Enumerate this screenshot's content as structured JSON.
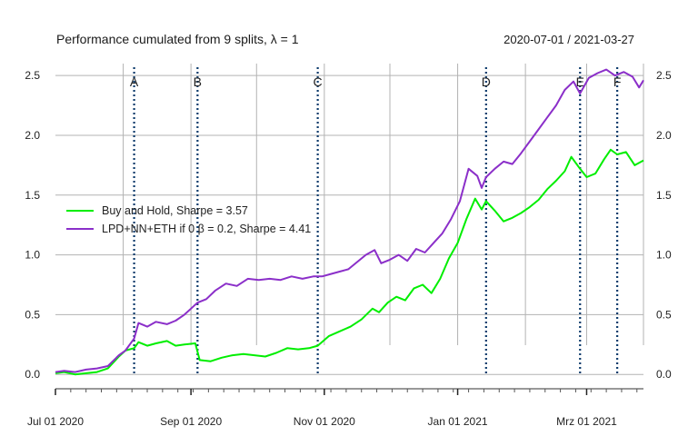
{
  "chart_data": {
    "type": "line",
    "title": "Performance cumulated from 9 splits, λ = 1",
    "date_range": "2020-07-01 / 2021-03-27",
    "x_range": [
      "2020-07-01",
      "2021-03-27"
    ],
    "ylim": [
      -0.12,
      2.6
    ],
    "y_ticks": [
      "0.0",
      "0.5",
      "1.0",
      "1.5",
      "2.0",
      "2.5"
    ],
    "x_tick_labels": [
      {
        "date": "2020-07-01",
        "label": "Jul 01 2020"
      },
      {
        "date": "2020-09-01",
        "label": "Sep 01 2020"
      },
      {
        "date": "2020-11-01",
        "label": "Nov 01 2020"
      },
      {
        "date": "2021-01-01",
        "label": "Jan 01 2021"
      },
      {
        "date": "2021-03-01",
        "label": "Mrz 01 2021"
      }
    ],
    "month_gridlines": [
      "2020-08-01",
      "2020-09-01",
      "2020-10-01",
      "2020-11-01",
      "2020-12-01",
      "2021-01-01",
      "2021-02-01",
      "2021-03-01"
    ],
    "grid": true,
    "legend_position": "left-middle",
    "events": [
      {
        "label": "A",
        "date": "2020-08-06"
      },
      {
        "label": "B",
        "date": "2020-09-04"
      },
      {
        "label": "C",
        "date": "2020-10-29"
      },
      {
        "label": "D",
        "date": "2021-01-14"
      },
      {
        "label": "E",
        "date": "2021-02-26"
      },
      {
        "label": "F",
        "date": "2021-03-15"
      }
    ],
    "series": [
      {
        "name": "Buy and Hold, Sharpe = 3.57",
        "color": "#00ee00",
        "points": [
          [
            "2020-07-01",
            0.01
          ],
          [
            "2020-07-05",
            0.02
          ],
          [
            "2020-07-10",
            0.0
          ],
          [
            "2020-07-15",
            0.01
          ],
          [
            "2020-07-20",
            0.02
          ],
          [
            "2020-07-25",
            0.05
          ],
          [
            "2020-07-30",
            0.15
          ],
          [
            "2020-08-02",
            0.2
          ],
          [
            "2020-08-06",
            0.22
          ],
          [
            "2020-08-08",
            0.27
          ],
          [
            "2020-08-12",
            0.24
          ],
          [
            "2020-08-16",
            0.26
          ],
          [
            "2020-08-21",
            0.28
          ],
          [
            "2020-08-25",
            0.24
          ],
          [
            "2020-08-29",
            0.25
          ],
          [
            "2020-09-03",
            0.26
          ],
          [
            "2020-09-05",
            0.12
          ],
          [
            "2020-09-10",
            0.11
          ],
          [
            "2020-09-15",
            0.14
          ],
          [
            "2020-09-20",
            0.16
          ],
          [
            "2020-09-25",
            0.17
          ],
          [
            "2020-09-30",
            0.16
          ],
          [
            "2020-10-05",
            0.15
          ],
          [
            "2020-10-10",
            0.18
          ],
          [
            "2020-10-15",
            0.22
          ],
          [
            "2020-10-20",
            0.21
          ],
          [
            "2020-10-25",
            0.22
          ],
          [
            "2020-10-29",
            0.24
          ],
          [
            "2020-11-03",
            0.32
          ],
          [
            "2020-11-08",
            0.36
          ],
          [
            "2020-11-13",
            0.4
          ],
          [
            "2020-11-18",
            0.46
          ],
          [
            "2020-11-23",
            0.55
          ],
          [
            "2020-11-26",
            0.52
          ],
          [
            "2020-11-30",
            0.6
          ],
          [
            "2020-12-04",
            0.65
          ],
          [
            "2020-12-08",
            0.62
          ],
          [
            "2020-12-12",
            0.72
          ],
          [
            "2020-12-16",
            0.75
          ],
          [
            "2020-12-20",
            0.68
          ],
          [
            "2020-12-24",
            0.8
          ],
          [
            "2020-12-28",
            0.97
          ],
          [
            "2021-01-01",
            1.1
          ],
          [
            "2021-01-05",
            1.3
          ],
          [
            "2021-01-09",
            1.47
          ],
          [
            "2021-01-12",
            1.38
          ],
          [
            "2021-01-14",
            1.45
          ],
          [
            "2021-01-18",
            1.37
          ],
          [
            "2021-01-22",
            1.28
          ],
          [
            "2021-01-26",
            1.31
          ],
          [
            "2021-01-30",
            1.35
          ],
          [
            "2021-02-03",
            1.4
          ],
          [
            "2021-02-07",
            1.46
          ],
          [
            "2021-02-11",
            1.55
          ],
          [
            "2021-02-15",
            1.62
          ],
          [
            "2021-02-19",
            1.7
          ],
          [
            "2021-02-22",
            1.82
          ],
          [
            "2021-02-26",
            1.72
          ],
          [
            "2021-03-01",
            1.65
          ],
          [
            "2021-03-05",
            1.68
          ],
          [
            "2021-03-09",
            1.8
          ],
          [
            "2021-03-12",
            1.88
          ],
          [
            "2021-03-15",
            1.84
          ],
          [
            "2021-03-19",
            1.86
          ],
          [
            "2021-03-23",
            1.75
          ],
          [
            "2021-03-27",
            1.79
          ]
        ]
      },
      {
        "name": "LPD+NN+ETH if 0 β = 0.2, Sharpe = 4.41",
        "color": "#8b2fc9",
        "points": [
          [
            "2020-07-01",
            0.02
          ],
          [
            "2020-07-05",
            0.03
          ],
          [
            "2020-07-10",
            0.02
          ],
          [
            "2020-07-15",
            0.04
          ],
          [
            "2020-07-20",
            0.05
          ],
          [
            "2020-07-25",
            0.07
          ],
          [
            "2020-07-30",
            0.16
          ],
          [
            "2020-08-02",
            0.2
          ],
          [
            "2020-08-06",
            0.3
          ],
          [
            "2020-08-08",
            0.43
          ],
          [
            "2020-08-12",
            0.4
          ],
          [
            "2020-08-16",
            0.44
          ],
          [
            "2020-08-21",
            0.42
          ],
          [
            "2020-08-25",
            0.45
          ],
          [
            "2020-08-29",
            0.5
          ],
          [
            "2020-09-01",
            0.55
          ],
          [
            "2020-09-04",
            0.6
          ],
          [
            "2020-09-08",
            0.63
          ],
          [
            "2020-09-12",
            0.7
          ],
          [
            "2020-09-17",
            0.76
          ],
          [
            "2020-09-22",
            0.74
          ],
          [
            "2020-09-27",
            0.8
          ],
          [
            "2020-10-02",
            0.79
          ],
          [
            "2020-10-07",
            0.8
          ],
          [
            "2020-10-12",
            0.79
          ],
          [
            "2020-10-17",
            0.82
          ],
          [
            "2020-10-22",
            0.8
          ],
          [
            "2020-10-27",
            0.82
          ],
          [
            "2020-10-31",
            0.82
          ],
          [
            "2020-11-04",
            0.84
          ],
          [
            "2020-11-08",
            0.86
          ],
          [
            "2020-11-12",
            0.88
          ],
          [
            "2020-11-16",
            0.94
          ],
          [
            "2020-11-20",
            1.0
          ],
          [
            "2020-11-24",
            1.04
          ],
          [
            "2020-11-27",
            0.93
          ],
          [
            "2020-12-01",
            0.96
          ],
          [
            "2020-12-05",
            1.0
          ],
          [
            "2020-12-09",
            0.95
          ],
          [
            "2020-12-13",
            1.05
          ],
          [
            "2020-12-17",
            1.02
          ],
          [
            "2020-12-21",
            1.1
          ],
          [
            "2020-12-25",
            1.18
          ],
          [
            "2020-12-29",
            1.3
          ],
          [
            "2021-01-02",
            1.45
          ],
          [
            "2021-01-06",
            1.72
          ],
          [
            "2021-01-10",
            1.66
          ],
          [
            "2021-01-12",
            1.56
          ],
          [
            "2021-01-14",
            1.65
          ],
          [
            "2021-01-18",
            1.72
          ],
          [
            "2021-01-22",
            1.78
          ],
          [
            "2021-01-26",
            1.76
          ],
          [
            "2021-01-30",
            1.85
          ],
          [
            "2021-02-03",
            1.95
          ],
          [
            "2021-02-07",
            2.05
          ],
          [
            "2021-02-11",
            2.15
          ],
          [
            "2021-02-15",
            2.25
          ],
          [
            "2021-02-19",
            2.38
          ],
          [
            "2021-02-23",
            2.45
          ],
          [
            "2021-02-26",
            2.35
          ],
          [
            "2021-03-02",
            2.48
          ],
          [
            "2021-03-06",
            2.52
          ],
          [
            "2021-03-10",
            2.55
          ],
          [
            "2021-03-14",
            2.5
          ],
          [
            "2021-03-18",
            2.53
          ],
          [
            "2021-03-22",
            2.49
          ],
          [
            "2021-03-25",
            2.4
          ],
          [
            "2021-03-27",
            2.46
          ]
        ]
      }
    ]
  }
}
